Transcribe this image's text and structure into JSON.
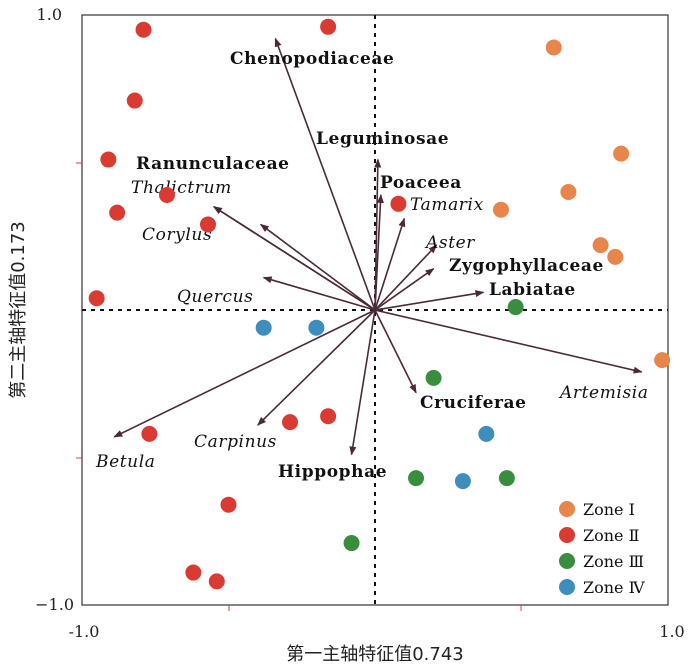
{
  "chart_data": {
    "type": "scatter",
    "xlabel": "第一主轴特征值0.743",
    "ylabel": "第二主轴特征值0.173",
    "xlim": [
      -1.0,
      1.0
    ],
    "ylim": [
      -1.0,
      1.0
    ],
    "x_ticks": [
      "-1.0",
      "1.0"
    ],
    "y_ticks": [
      "1.0",
      "−1.0"
    ],
    "reference_lines": "dashed lines at x=0 and y=0",
    "legend_placement": "bottom-right",
    "arrows": [
      {
        "name": "Chenopodiaceae",
        "x": -0.34,
        "y": 0.92,
        "italic": false
      },
      {
        "name": "Leguminosae",
        "x": 0.01,
        "y": 0.51,
        "italic": false
      },
      {
        "name": "Ranunculaceae",
        "x": -0.55,
        "y": 0.35,
        "italic": false
      },
      {
        "name": "Thalictrum",
        "x": -0.55,
        "y": 0.35,
        "italic": true
      },
      {
        "name": "Poaceea",
        "x": 0.02,
        "y": 0.39,
        "italic": false
      },
      {
        "name": "Tamarix",
        "x": 0.1,
        "y": 0.31,
        "italic": true
      },
      {
        "name": "Corylus",
        "x": -0.39,
        "y": 0.29,
        "italic": true
      },
      {
        "name": "Aster",
        "x": 0.21,
        "y": 0.22,
        "italic": true
      },
      {
        "name": "Zygophyllaceae",
        "x": 0.2,
        "y": 0.14,
        "italic": false
      },
      {
        "name": "Labiatae",
        "x": 0.37,
        "y": 0.06,
        "italic": false
      },
      {
        "name": "Quercus",
        "x": -0.38,
        "y": 0.11,
        "italic": true
      },
      {
        "name": "Artemisia",
        "x": 0.91,
        "y": -0.21,
        "italic": true
      },
      {
        "name": "Cruciferae",
        "x": 0.14,
        "y": -0.28,
        "italic": false
      },
      {
        "name": "Carpinus",
        "x": -0.4,
        "y": -0.39,
        "italic": true
      },
      {
        "name": "Betula",
        "x": -0.89,
        "y": -0.43,
        "italic": true
      },
      {
        "name": "Hippophae",
        "x": -0.08,
        "y": -0.49,
        "italic": false
      }
    ],
    "series": [
      {
        "name": "Zone Ⅰ",
        "color": "#e8854a",
        "points": [
          [
            0.61,
            0.89
          ],
          [
            0.84,
            0.53
          ],
          [
            0.43,
            0.34
          ],
          [
            0.66,
            0.4
          ],
          [
            0.77,
            0.22
          ],
          [
            0.82,
            0.18
          ],
          [
            0.98,
            -0.17
          ]
        ]
      },
      {
        "name": "Zone Ⅱ",
        "color": "#d93b32",
        "points": [
          [
            -0.79,
            0.95
          ],
          [
            -0.16,
            0.96
          ],
          [
            -0.82,
            0.71
          ],
          [
            -0.91,
            0.51
          ],
          [
            -0.71,
            0.39
          ],
          [
            -0.88,
            0.33
          ],
          [
            -0.57,
            0.29
          ],
          [
            0.08,
            0.36
          ],
          [
            -0.95,
            0.04
          ],
          [
            -0.77,
            -0.42
          ],
          [
            -0.29,
            -0.38
          ],
          [
            -0.16,
            -0.36
          ],
          [
            -0.5,
            -0.66
          ],
          [
            -0.62,
            -0.89
          ],
          [
            -0.54,
            -0.92
          ]
        ]
      },
      {
        "name": "Zone Ⅲ",
        "color": "#3a8d3e",
        "points": [
          [
            0.48,
            0.01
          ],
          [
            0.2,
            -0.23
          ],
          [
            0.14,
            -0.57
          ],
          [
            0.45,
            -0.57
          ],
          [
            -0.08,
            -0.79
          ]
        ]
      },
      {
        "name": "Zone Ⅳ",
        "color": "#3d8dbd",
        "points": [
          [
            -0.38,
            -0.06
          ],
          [
            -0.2,
            -0.06
          ],
          [
            0.38,
            -0.42
          ],
          [
            0.3,
            -0.58
          ]
        ]
      }
    ]
  },
  "legend_entries": [
    "Zone Ⅰ",
    "Zone Ⅱ",
    "Zone Ⅲ",
    "Zone Ⅳ"
  ]
}
